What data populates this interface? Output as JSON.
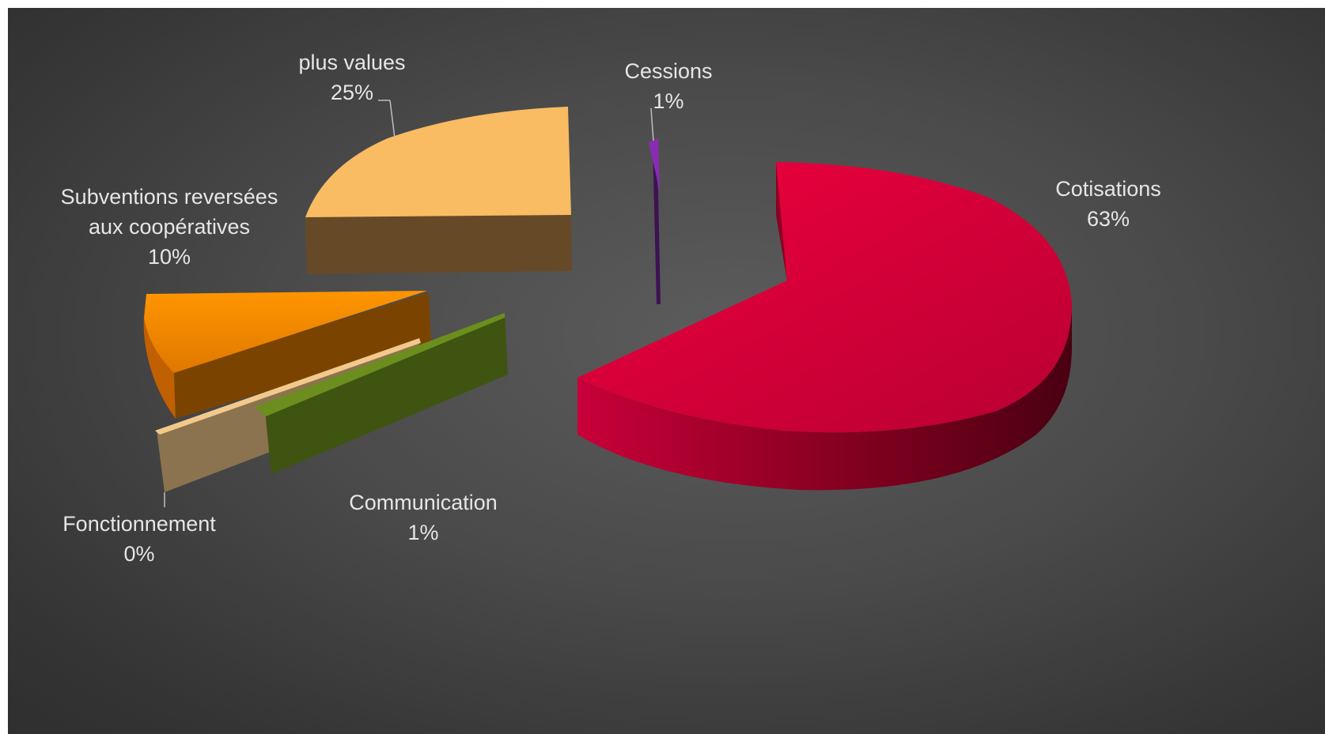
{
  "chart_data": {
    "type": "pie",
    "style": "3d-exploded",
    "background": "#4a4a4a",
    "label_color": "#e6e6e6",
    "slices": [
      {
        "name": "Cotisations",
        "pct_label": "63%",
        "value": 63,
        "color": "#e0003c",
        "side_color": "#8a0022"
      },
      {
        "name": "Communication",
        "pct_label": "1%",
        "value": 1,
        "color": "#6b8e1e",
        "side_color": "#3f5410"
      },
      {
        "name": "Fonctionnement",
        "pct_label": "0%",
        "value": 0,
        "color": "#f3c98b",
        "side_color": "#8c7350"
      },
      {
        "name": "Subventions reversées aux coopératives",
        "name_lines": [
          "Subventions reversées",
          "aux coopératives"
        ],
        "pct_label": "10%",
        "value": 10,
        "color": "#f78f00",
        "side_color": "#7a4400"
      },
      {
        "name": "plus values",
        "pct_label": "25%",
        "value": 25,
        "color": "#f9bc62",
        "side_color": "#664a28"
      },
      {
        "name": "Cessions",
        "pct_label": "1%",
        "value": 1,
        "color": "#8a2bb5",
        "side_color": "#3d1252"
      }
    ]
  }
}
